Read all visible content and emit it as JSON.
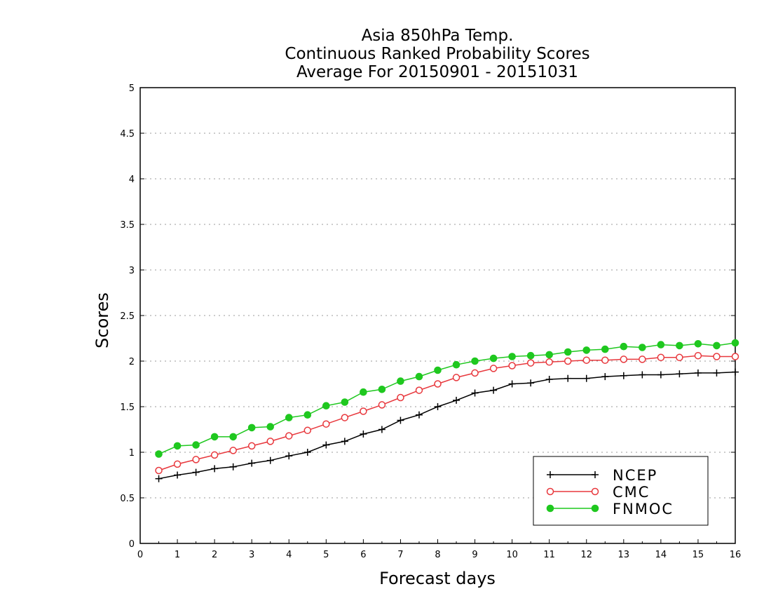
{
  "chart_data": {
    "type": "line",
    "title": [
      "Asia 850hPa Temp.",
      "Continuous Ranked Probability Scores",
      "Average For 20150901 - 20151031"
    ],
    "xlabel": "Forecast days",
    "ylabel": "Scores",
    "xlim": [
      0,
      16
    ],
    "ylim": [
      0,
      5
    ],
    "xticks": [
      "0",
      "1",
      "2",
      "3",
      "4",
      "5",
      "6",
      "7",
      "8",
      "9",
      "10",
      "11",
      "12",
      "13",
      "14",
      "15",
      "16"
    ],
    "yticks": [
      "0",
      "0.5",
      "1",
      "1.5",
      "2",
      "2.5",
      "3",
      "3.5",
      "4",
      "4.5",
      "5"
    ],
    "grid": true,
    "legend_position": "bottom-right",
    "x": [
      0.5,
      1,
      1.5,
      2,
      2.5,
      3,
      3.5,
      4,
      4.5,
      5,
      5.5,
      6,
      6.5,
      7,
      7.5,
      8,
      8.5,
      9,
      9.5,
      10,
      10.5,
      11,
      11.5,
      12,
      12.5,
      13,
      13.5,
      14,
      14.5,
      15,
      15.5,
      16
    ],
    "series": [
      {
        "name": "NCEP",
        "color": "#000000",
        "marker": "plus",
        "values": [
          0.71,
          0.75,
          0.78,
          0.82,
          0.84,
          0.88,
          0.91,
          0.96,
          1.0,
          1.08,
          1.12,
          1.2,
          1.25,
          1.35,
          1.41,
          1.5,
          1.57,
          1.65,
          1.68,
          1.75,
          1.76,
          1.8,
          1.81,
          1.81,
          1.83,
          1.84,
          1.85,
          1.85,
          1.86,
          1.87,
          1.87,
          1.88
        ]
      },
      {
        "name": "CMC",
        "color": "#e8383d",
        "marker": "open-circle",
        "values": [
          0.8,
          0.87,
          0.92,
          0.97,
          1.02,
          1.07,
          1.12,
          1.18,
          1.24,
          1.31,
          1.38,
          1.45,
          1.52,
          1.6,
          1.68,
          1.75,
          1.82,
          1.87,
          1.92,
          1.95,
          1.98,
          1.99,
          2.0,
          2.01,
          2.01,
          2.02,
          2.02,
          2.04,
          2.04,
          2.06,
          2.05,
          2.05
        ]
      },
      {
        "name": "FNMOC",
        "color": "#1fc81f",
        "marker": "filled-circle",
        "values": [
          0.98,
          1.07,
          1.08,
          1.17,
          1.17,
          1.27,
          1.28,
          1.38,
          1.41,
          1.51,
          1.55,
          1.66,
          1.69,
          1.78,
          1.83,
          1.9,
          1.96,
          2.0,
          2.03,
          2.05,
          2.06,
          2.07,
          2.1,
          2.12,
          2.13,
          2.16,
          2.15,
          2.18,
          2.17,
          2.19,
          2.17,
          2.2
        ]
      }
    ]
  }
}
